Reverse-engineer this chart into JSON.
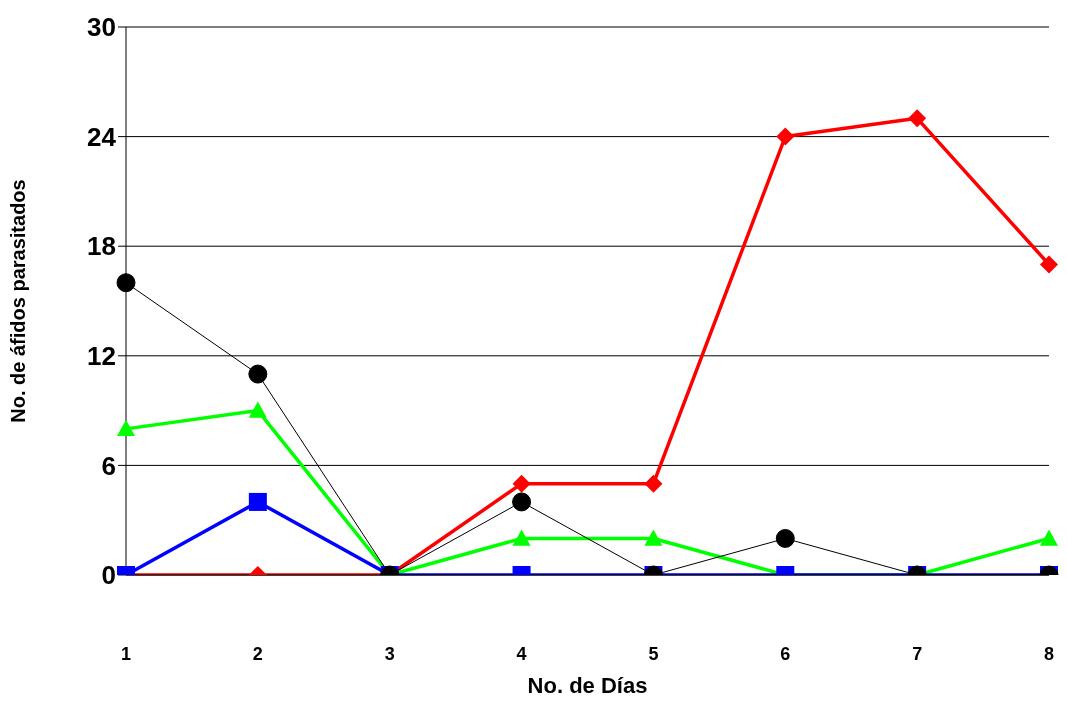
{
  "chart_data": {
    "type": "line",
    "xlabel": "No. de Días",
    "ylabel": "No. de áfidos parasitados",
    "categories": [
      "1",
      "2",
      "3",
      "4",
      "5",
      "6",
      "7",
      "8"
    ],
    "series": [
      {
        "color": "#ff0000",
        "marker": "diamond",
        "values": [
          0,
          0,
          0,
          5,
          5,
          24,
          25,
          17
        ]
      },
      {
        "color": "#00ff00",
        "marker": "triangle",
        "values": [
          8,
          9,
          0,
          2,
          2,
          0,
          0,
          2
        ]
      },
      {
        "color": "#0000ff",
        "marker": "square",
        "values": [
          0,
          4,
          0,
          0,
          0,
          0,
          0,
          0
        ]
      },
      {
        "color": "#000000",
        "marker": "circle",
        "values": [
          16,
          11,
          0,
          4,
          0,
          2,
          0,
          0
        ]
      }
    ],
    "ylim": [
      0,
      30
    ],
    "yticks": [
      0,
      6,
      12,
      18,
      24,
      30
    ],
    "grid": "y",
    "legend": false,
    "line_style": "solid"
  }
}
